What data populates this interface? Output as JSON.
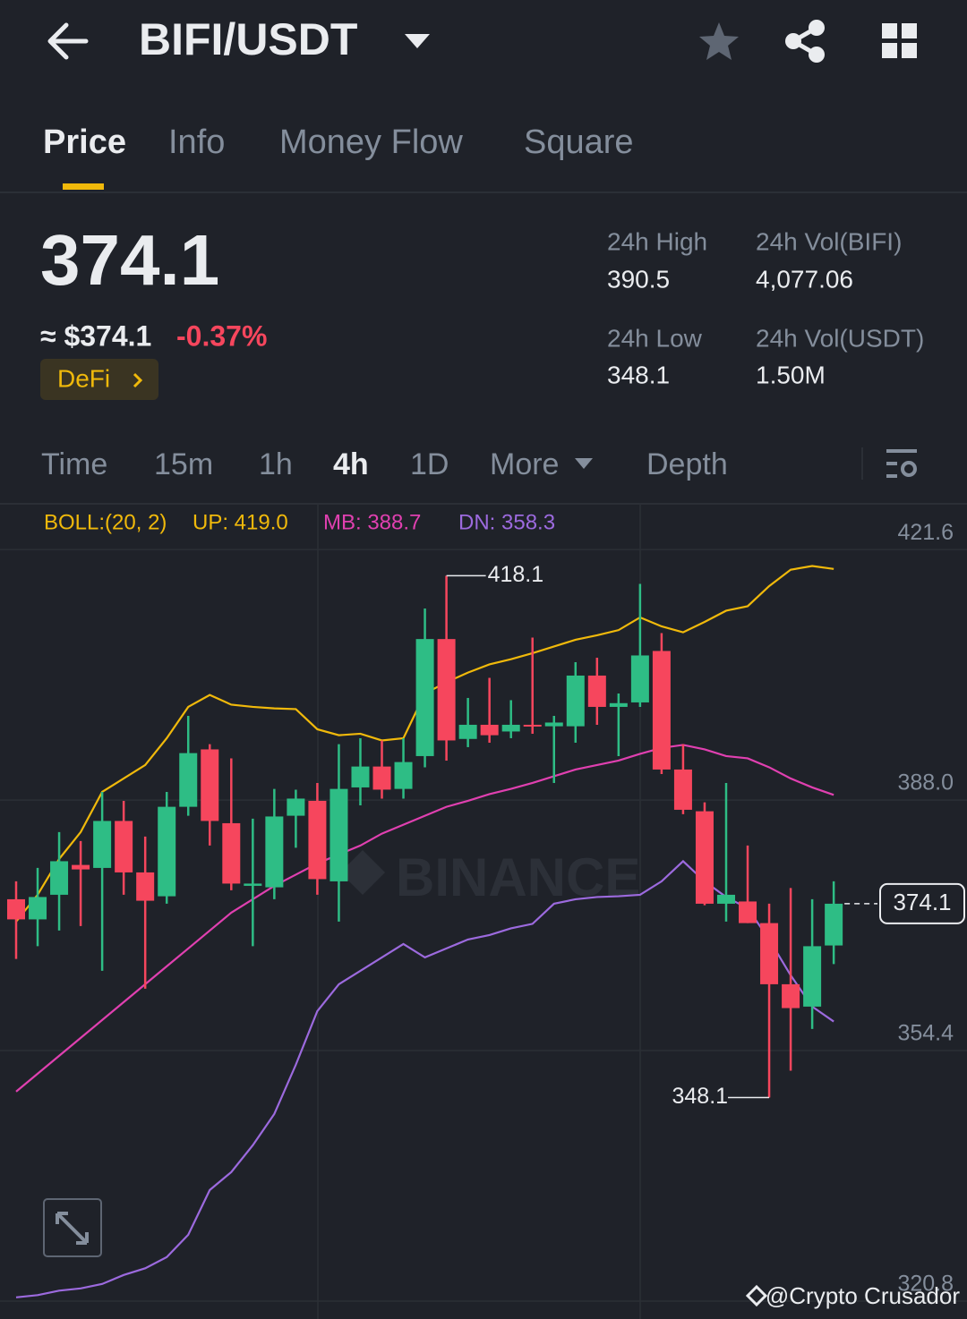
{
  "header": {
    "pair": "BIFI/USDT"
  },
  "tabs": [
    "Price",
    "Info",
    "Money Flow",
    "Square"
  ],
  "summary": {
    "price": "374.1",
    "usd": "≈ $374.1",
    "change": "-0.37%",
    "tag": "DeFi",
    "stats": [
      {
        "label": "24h High",
        "value": "390.5"
      },
      {
        "label": "24h Vol(BIFI)",
        "value": "4,077.06"
      },
      {
        "label": "24h Low",
        "value": "348.1"
      },
      {
        "label": "24h Vol(USDT)",
        "value": "1.50M"
      }
    ]
  },
  "intervals": [
    "Time",
    "15m",
    "1h",
    "4h",
    "1D",
    "More",
    "Depth"
  ],
  "chart_data": {
    "type": "candlestick",
    "watermark": "BINANCE",
    "legend_title": "BOLL:(20, 2)",
    "up_color": "#2ebd85",
    "down_color": "#f6465d",
    "ylim": [
      318.4,
      427.5
    ],
    "yticks": [
      421.6,
      {
        "value": 388,
        "label": "388.0"
      },
      354.4,
      320.8
    ],
    "grid": true,
    "open": [
      374.7,
      372.0,
      375.3,
      379.3,
      378.9,
      385.2,
      378.3,
      375.1,
      387.1,
      394.8,
      384.9,
      376.5,
      376.3,
      385.9,
      387.9,
      377.1,
      389.7,
      392.5,
      389.5,
      393.9,
      409.6,
      396.2,
      398.1,
      397.2,
      398.1,
      397.9,
      397.9,
      404.7,
      400.5,
      401.1,
      408.0,
      392.1,
      386.5,
      374.1,
      374.4,
      371.5,
      363.3,
      360.3,
      368.5
    ],
    "high": [
      377.1,
      378.9,
      383.7,
      382.5,
      389.1,
      387.9,
      383.1,
      389.1,
      399.3,
      395.5,
      393.6,
      385.5,
      389.5,
      389.4,
      390.3,
      395.5,
      396.3,
      396.0,
      396.3,
      413.7,
      418.1,
      401.7,
      404.4,
      401.4,
      409.8,
      399.3,
      406.5,
      407.1,
      402.3,
      417.0,
      410.4,
      395.5,
      387.7,
      390.3,
      381.9,
      374.1,
      376.2,
      374.7,
      377.1
    ],
    "low": [
      366.7,
      368.4,
      370.5,
      371.1,
      365.1,
      375.3,
      362.7,
      374.1,
      385.9,
      381.9,
      375.9,
      368.4,
      374.7,
      381.6,
      375.3,
      371.7,
      387.3,
      388.2,
      388.2,
      392.4,
      393.3,
      395.1,
      395.7,
      396.3,
      396.9,
      390.3,
      395.7,
      398.1,
      393.9,
      400.5,
      391.5,
      386.1,
      373.9,
      371.7,
      371.5,
      348.1,
      351.7,
      357.3,
      366.0
    ],
    "close": [
      372.0,
      375.0,
      379.8,
      378.7,
      385.2,
      378.3,
      374.5,
      387.1,
      394.3,
      385.2,
      376.8,
      376.8,
      385.8,
      388.2,
      377.4,
      389.5,
      392.5,
      389.4,
      393.1,
      409.6,
      396.0,
      398.1,
      396.7,
      398.1,
      397.9,
      398.4,
      404.7,
      400.5,
      401.0,
      407.4,
      392.1,
      386.7,
      374.1,
      375.3,
      371.5,
      363.3,
      360.1,
      368.4,
      374.1
    ],
    "bands": [
      {
        "label": "UP: 419.0",
        "color": "#f0b90b",
        "values": [
          371.7,
          375.3,
          380.1,
          383.7,
          389.1,
          390.9,
          392.7,
          396.3,
          400.5,
          402.1,
          400.8,
          400.5,
          400.3,
          400.2,
          397.5,
          396.7,
          396.9,
          396.0,
          396.3,
          402.3,
          403.8,
          405.1,
          406.2,
          406.9,
          407.7,
          408.6,
          409.5,
          410.1,
          410.8,
          412.5,
          411.3,
          410.5,
          411.9,
          413.4,
          414.0,
          416.7,
          418.9,
          419.4,
          419.0
        ]
      },
      {
        "label": "MB: 388.7",
        "color": "#e040b0",
        "values": [
          348.9,
          351.3,
          353.7,
          356.1,
          358.5,
          360.9,
          363.3,
          365.7,
          368.1,
          370.5,
          372.9,
          374.7,
          376.5,
          378.0,
          379.5,
          380.7,
          381.9,
          383.5,
          384.7,
          385.9,
          387.1,
          387.9,
          388.8,
          389.5,
          390.3,
          391.2,
          392.1,
          392.7,
          393.3,
          394.2,
          395.0,
          395.4,
          394.8,
          393.9,
          393.6,
          392.4,
          390.9,
          389.7,
          388.7
        ]
      },
      {
        "label": "DN: 358.3",
        "color": "#9c6ade",
        "values": [
          321.3,
          321.6,
          322.2,
          322.5,
          323.1,
          324.3,
          325.2,
          326.7,
          329.7,
          335.7,
          338.1,
          341.7,
          345.9,
          352.5,
          359.7,
          363.3,
          365.1,
          366.9,
          368.7,
          366.9,
          368.1,
          369.3,
          369.9,
          370.8,
          371.4,
          374.1,
          374.7,
          375.0,
          375.1,
          375.3,
          377.1,
          379.8,
          377.1,
          375.0,
          373.5,
          369.3,
          364.5,
          360.3,
          358.3
        ]
      }
    ]
  },
  "credit": "@Crypto Crusador"
}
